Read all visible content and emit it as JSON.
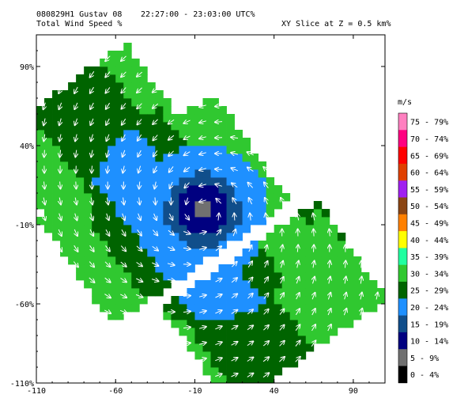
{
  "header": {
    "line1_left": "080829H1 Gustav 08",
    "line1_mid": "22:27:00 - 23:03:00 UTC%",
    "line2_left": "Total Wind Speed %",
    "line2_right": "XY Slice at Z = 0.5 km%"
  },
  "chart_data": {
    "type": "heatmap",
    "title": "Total Wind Speed %",
    "xlim": [
      -110,
      110
    ],
    "ylim": [
      -110,
      110
    ],
    "x_ticks": [
      -110,
      -60,
      -10,
      40,
      90
    ],
    "y_ticks": [
      90,
      40,
      -10,
      -60,
      -110
    ],
    "x_tick_labels": [
      "-110",
      "-60",
      "-10",
      "40",
      "90"
    ],
    "y_tick_labels": [
      "90%",
      "40%",
      "-10%",
      "-60%",
      "-110%"
    ],
    "colorbar_unit": "m/s",
    "colorbar": [
      {
        "label": "75 - 79%",
        "color": "#ff80c0"
      },
      {
        "label": "70 - 74%",
        "color": "#ff0080"
      },
      {
        "label": "65 - 69%",
        "color": "#ff0000"
      },
      {
        "label": "60 - 64%",
        "color": "#e04000"
      },
      {
        "label": "55 - 59%",
        "color": "#a020f0"
      },
      {
        "label": "50 - 54%",
        "color": "#8b4513"
      },
      {
        "label": "45 - 49%",
        "color": "#ff8000"
      },
      {
        "label": "40 - 44%",
        "color": "#ffff00"
      },
      {
        "label": "35 - 39%",
        "color": "#20ffa0"
      },
      {
        "label": "30 - 34%",
        "color": "#30c830"
      },
      {
        "label": "25 - 29%",
        "color": "#006400"
      },
      {
        "label": "20 - 24%",
        "color": "#1e90ff"
      },
      {
        "label": "15 - 19%",
        "color": "#104e8b"
      },
      {
        "label": "10 - 14%",
        "color": "#000080"
      },
      {
        "label": "5 - 9%",
        "color": "#707070"
      },
      {
        "label": "0 - 4%",
        "color": "#000000"
      }
    ],
    "center": [
      -5,
      -1
    ]
  }
}
